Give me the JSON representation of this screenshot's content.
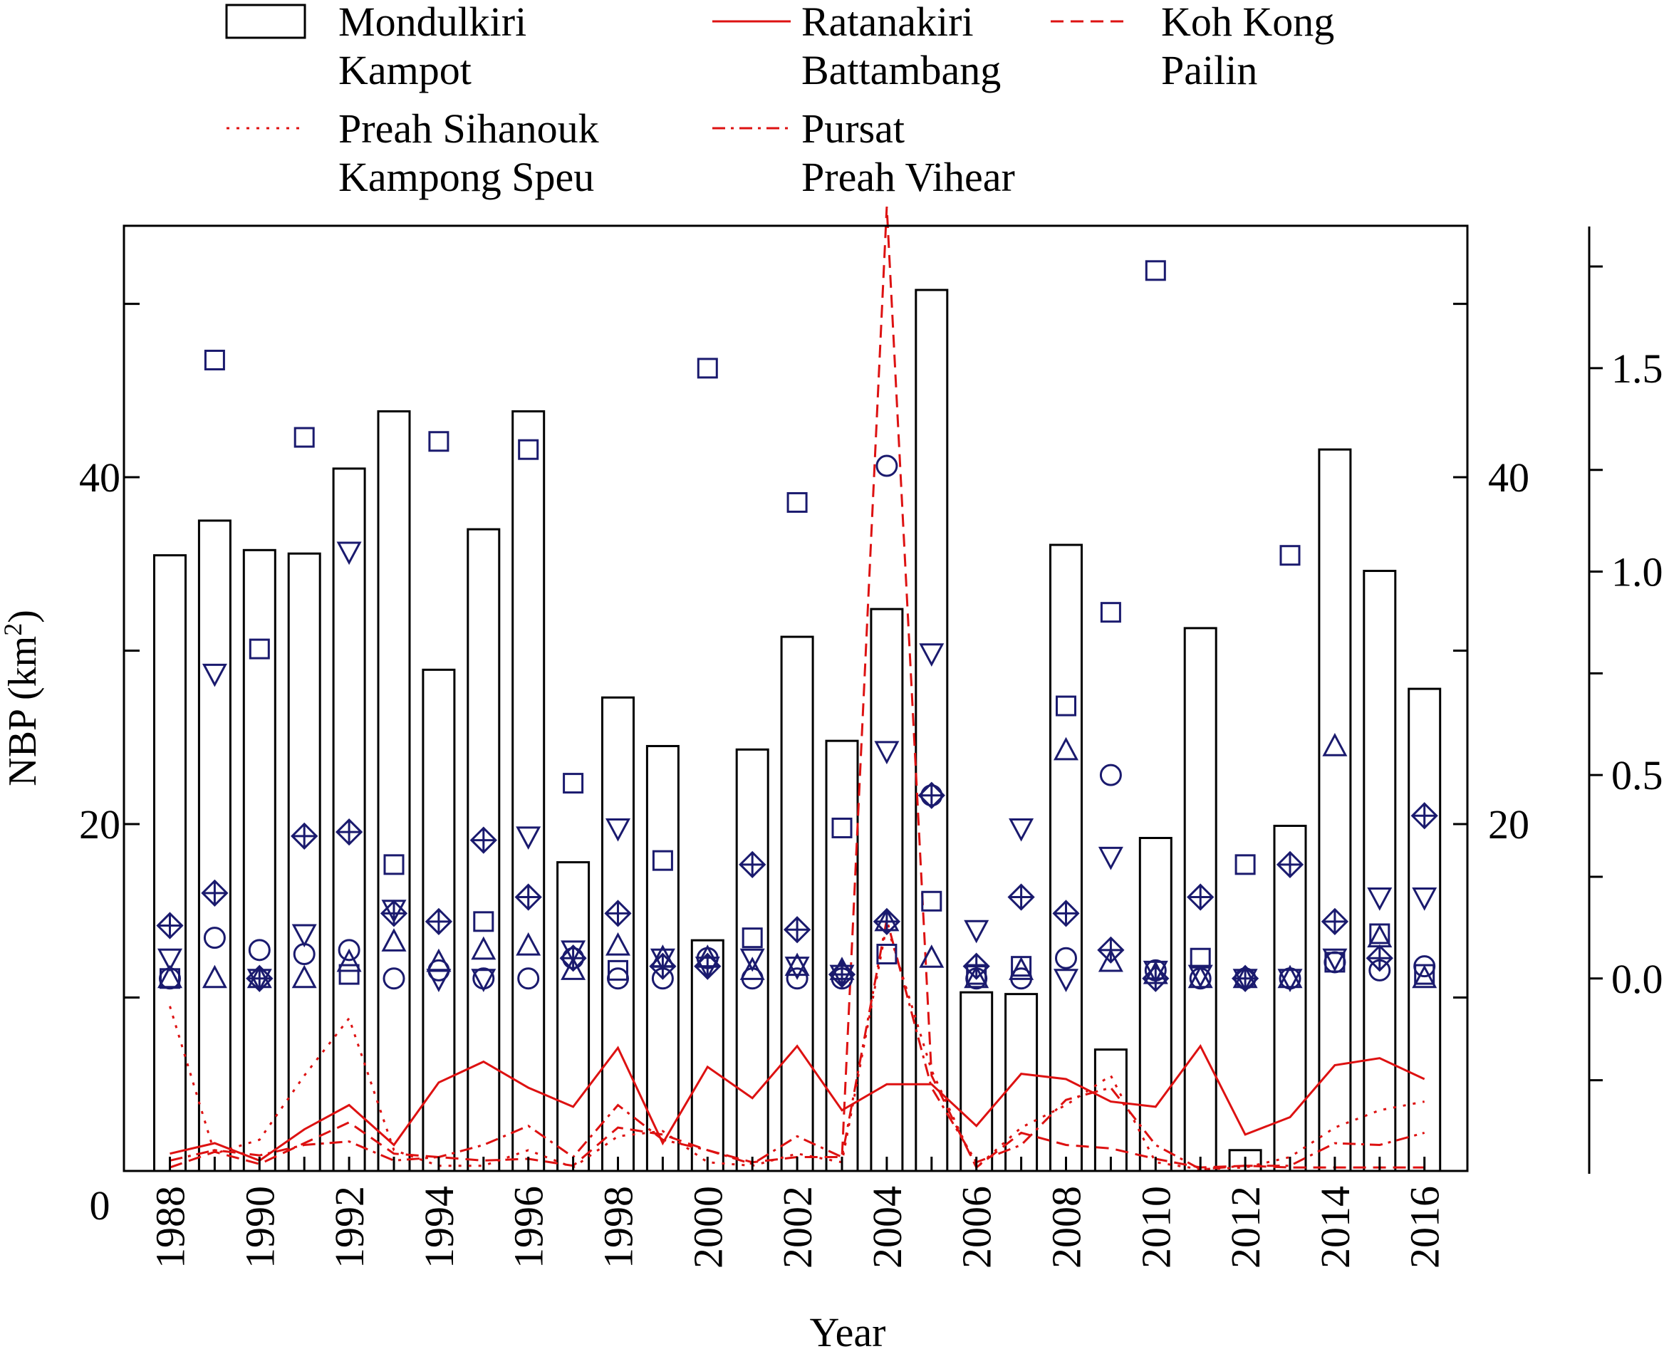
{
  "chart_data": {
    "type": "bar",
    "xlabel": "Year",
    "ylabel": "NBP (km",
    "ylabel_sup": "2",
    "ylabel_close": ")",
    "x": [
      1988,
      1989,
      1990,
      1991,
      1992,
      1993,
      1994,
      1995,
      1996,
      1997,
      1998,
      1999,
      2000,
      2001,
      2002,
      2003,
      2004,
      2005,
      2006,
      2007,
      2008,
      2009,
      2010,
      2011,
      2012,
      2013,
      2014,
      2015,
      2016
    ],
    "x_tick_labels": [
      "1988",
      "1990",
      "1992",
      "1994",
      "1996",
      "1998",
      "2000",
      "2002",
      "2004",
      "2006",
      "2008",
      "2010",
      "2012",
      "2014",
      "2016"
    ],
    "left_axis": {
      "ylim": [
        0,
        54.5
      ],
      "ticks": [
        0,
        20,
        40
      ],
      "tick_labels": [
        "0",
        "20",
        "40"
      ]
    },
    "middle_axis": {
      "ylim": [
        0,
        54.5
      ],
      "ticks": [
        20,
        40
      ],
      "tick_labels": [
        "20",
        "40"
      ]
    },
    "right_axis": {
      "ylim": [
        -0.48,
        1.85
      ],
      "ticks": [
        -0.25,
        0.0,
        0.5,
        1.0,
        1.5
      ],
      "tick_labels": [
        "",
        "0.0",
        "0.5",
        "1.0",
        "1.5"
      ]
    },
    "grid": false,
    "legend_position": "top",
    "legend": [
      {
        "names": [
          "Mondulkiri",
          "Kampot"
        ],
        "style": "bar"
      },
      {
        "names": [
          "Ratanakiri",
          "Battambang"
        ],
        "style": "solid"
      },
      {
        "names": [
          "Koh Kong",
          "Pailin"
        ],
        "style": "dashed"
      },
      {
        "names": [
          "Preah Sihanouk",
          "Kampong Speu"
        ],
        "style": "dotted"
      },
      {
        "names": [
          "Pursat",
          "Preah Vihear"
        ],
        "style": "dashdot"
      }
    ],
    "colors": {
      "bars": "#000000",
      "lines": "#dd1111",
      "markers": "#1a1a6e"
    },
    "series": [
      {
        "name": "Mondulkiri",
        "type": "bar",
        "axis": "left",
        "values": [
          35.5,
          37.5,
          35.8,
          35.6,
          40.5,
          43.8,
          28.9,
          37.0,
          43.8,
          17.8,
          27.3,
          24.5,
          13.3,
          24.3,
          30.8,
          24.8,
          32.4,
          50.8,
          10.3,
          10.2,
          36.1,
          7.0,
          19.2,
          31.3,
          1.2,
          19.9,
          41.6,
          34.6,
          27.8
        ]
      },
      {
        "name": "Ratanakiri",
        "type": "line",
        "style": "solid",
        "axis": "left",
        "values": [
          1.0,
          1.6,
          0.6,
          2.4,
          3.8,
          1.5,
          5.1,
          6.3,
          4.8,
          3.7,
          7.1,
          1.6,
          6.0,
          4.2,
          7.2,
          3.5,
          5.0,
          5.0,
          2.6,
          5.6,
          5.3,
          4.0,
          3.7,
          7.2,
          2.1,
          3.1,
          6.1,
          6.5,
          5.3
        ]
      },
      {
        "name": "Koh Kong",
        "type": "line",
        "style": "dashed",
        "axis": "left",
        "values": [
          0.2,
          1.1,
          0.4,
          1.6,
          2.8,
          1.0,
          0.8,
          0.6,
          0.7,
          0.3,
          2.5,
          2.1,
          1.2,
          0.5,
          0.8,
          0.8,
          55.6,
          5.5,
          0.2,
          2.2,
          1.5,
          1.3,
          0.7,
          0.2,
          0.3,
          0.2,
          0.2,
          0.2,
          0.2
        ]
      },
      {
        "name": "Preah Sihanouk",
        "type": "line",
        "style": "dotted",
        "axis": "left",
        "values": [
          9.5,
          1.0,
          1.8,
          5.5,
          8.8,
          1.2,
          0.3,
          0.3,
          1.2,
          0.2,
          2.0,
          2.3,
          0.5,
          0.3,
          1.0,
          0.5,
          14.2,
          5.8,
          0.2,
          2.5,
          3.8,
          5.5,
          0.5,
          0.1,
          0.2,
          0.8,
          2.5,
          3.5,
          4.0
        ]
      },
      {
        "name": "Pursat",
        "type": "line",
        "style": "dashdot",
        "axis": "left",
        "values": [
          0.6,
          1.2,
          0.9,
          1.5,
          1.7,
          0.6,
          0.8,
          1.5,
          2.6,
          0.8,
          3.8,
          1.8,
          1.2,
          0.4,
          2.0,
          0.8,
          14.5,
          4.8,
          0.5,
          1.5,
          4.1,
          4.8,
          1.5,
          0.1,
          0.3,
          0.3,
          1.6,
          1.5,
          2.2
        ]
      },
      {
        "name": "Kampot",
        "type": "scatter",
        "marker": "square",
        "axis": "right",
        "values": [
          0.0,
          1.52,
          0.81,
          1.33,
          0.01,
          0.28,
          1.32,
          0.14,
          1.3,
          0.48,
          0.02,
          0.29,
          1.5,
          0.1,
          1.17,
          0.37,
          0.06,
          0.19,
          0.01,
          0.03,
          0.67,
          0.9,
          1.74,
          0.05,
          0.28,
          1.04,
          0.04,
          0.11,
          0.01
        ]
      },
      {
        "name": "Battambang",
        "type": "scatter",
        "marker": "circle",
        "axis": "right",
        "values": [
          0.0,
          0.1,
          0.07,
          0.06,
          0.07,
          0.0,
          0.02,
          0.0,
          0.0,
          0.05,
          0.0,
          0.0,
          0.05,
          0.0,
          0.0,
          0.0,
          1.26,
          0.45,
          0.0,
          0.0,
          0.05,
          0.5,
          0.02,
          0.0,
          0.0,
          0.0,
          0.04,
          0.02,
          0.03
        ]
      },
      {
        "name": "Pailin",
        "type": "scatter",
        "marker": "triangle-up",
        "axis": "right",
        "values": [
          0.0,
          0.0,
          0.0,
          0.0,
          0.04,
          0.09,
          0.04,
          0.07,
          0.08,
          0.02,
          0.08,
          0.05,
          0.05,
          0.02,
          0.03,
          0.02,
          0.14,
          0.05,
          0.0,
          0.02,
          0.56,
          0.04,
          0.01,
          0.0,
          0.0,
          0.0,
          0.57,
          0.1,
          0.0
        ]
      },
      {
        "name": "Preah Vihear",
        "type": "scatter",
        "marker": "triangle-down",
        "axis": "right",
        "values": [
          0.05,
          0.75,
          0.0,
          0.11,
          1.05,
          0.17,
          0.0,
          0.0,
          0.35,
          0.07,
          0.37,
          0.05,
          0.03,
          0.05,
          0.03,
          0.01,
          0.56,
          0.8,
          0.12,
          0.37,
          0.0,
          0.3,
          0.02,
          0.01,
          0.0,
          0.0,
          0.05,
          0.2,
          0.2
        ]
      },
      {
        "name": "Kampong Speu",
        "type": "scatter",
        "marker": "diamond-plus",
        "axis": "right",
        "values": [
          0.13,
          0.21,
          0.0,
          0.35,
          0.36,
          0.16,
          0.14,
          0.34,
          0.2,
          0.05,
          0.16,
          0.03,
          0.03,
          0.28,
          0.12,
          0.01,
          0.14,
          0.45,
          0.03,
          0.2,
          0.16,
          0.07,
          0.0,
          0.2,
          0.0,
          0.28,
          0.14,
          0.05,
          0.4
        ]
      }
    ]
  }
}
